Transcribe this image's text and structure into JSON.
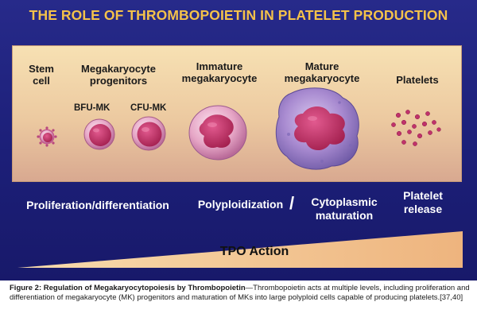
{
  "title": "THE ROLE OF THROMBOPOIETIN IN PLATELET PRODUCTION",
  "stages": {
    "stem": "Stem\ncell",
    "progenitors": "Megakaryocyte\nprogenitors",
    "bfu": "BFU-MK",
    "cfu": "CFU-MK",
    "immature": "Immature\nmegakaryocyte",
    "mature": "Mature\nmegakaryocyte",
    "platelets": "Platelets"
  },
  "functions": {
    "prolif": "Proliferation/differentiation",
    "poly": "Polyploidization",
    "slash": "/",
    "cyto": "Cytoplasmic\nmaturation",
    "release": "Platelet\nrelease"
  },
  "tpo_label": "TPO Action",
  "caption": {
    "bold": "Figure 2: Regulation of Megakaryocytopoiesis by Thrombopoietin",
    "text": "—Thrombopoietin acts at multiple levels, including proliferation and differentiation of megakaryocyte (MK) progenitors and maturation of MKs into large polyploid cells capable of producing platelets.[37,40]"
  },
  "colors": {
    "background": "#1f2280",
    "title": "#f4c24a",
    "panel": "#f2d8ae",
    "wedge": "#f3c08e",
    "cell_nucleus": "#c42f6e",
    "cell_cytoplasm": "#e9aacb",
    "mature_cytoplasm": "#a98bd0"
  }
}
